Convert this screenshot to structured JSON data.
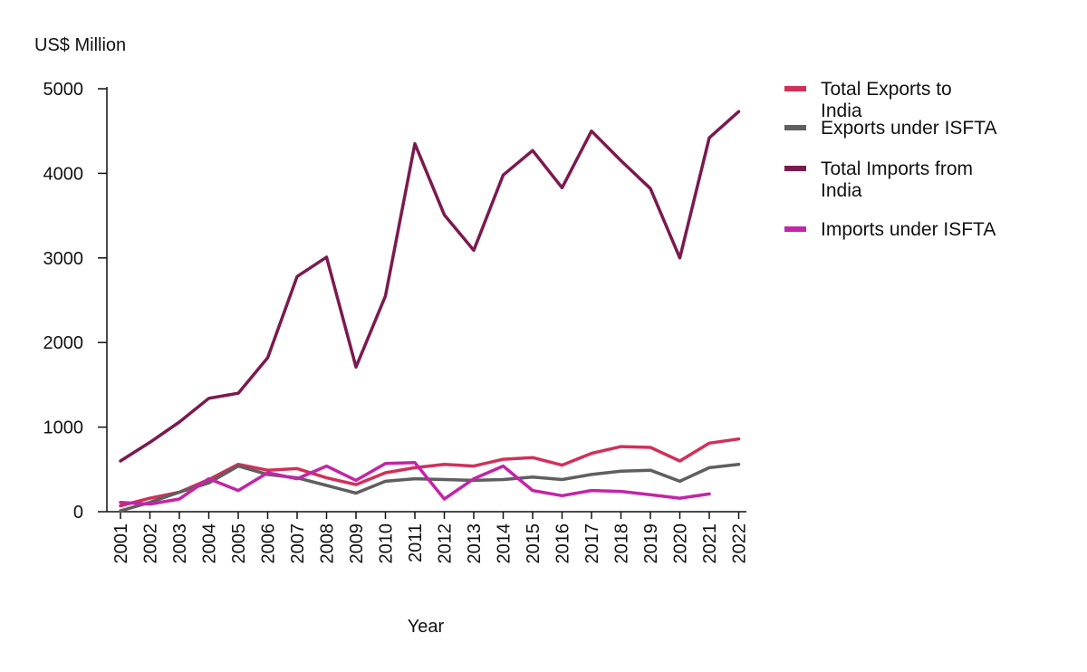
{
  "chart_data": {
    "type": "line",
    "ylabel": "US$ Million",
    "xlabel": "Year",
    "ylim": [
      0,
      5000
    ],
    "yticks": [
      0,
      1000,
      2000,
      3000,
      4000,
      5000
    ],
    "x": [
      2001,
      2002,
      2003,
      2004,
      2005,
      2006,
      2007,
      2008,
      2009,
      2010,
      2011,
      2012,
      2013,
      2014,
      2015,
      2016,
      2017,
      2018,
      2019,
      2020,
      2021,
      2022
    ],
    "grid": false,
    "legend": "right",
    "series": [
      {
        "name": "Total Exports to India",
        "color": "#d0305a",
        "values": [
          70,
          160,
          230,
          380,
          560,
          490,
          510,
          400,
          320,
          460,
          520,
          560,
          540,
          620,
          640,
          550,
          690,
          770,
          760,
          600,
          810,
          860
        ]
      },
      {
        "name": "Exports under ISFTA",
        "color": "#5f5f5f",
        "values": [
          10,
          110,
          230,
          340,
          540,
          440,
          400,
          310,
          220,
          360,
          390,
          380,
          370,
          380,
          410,
          380,
          440,
          480,
          490,
          360,
          520,
          560
        ]
      },
      {
        "name": "Total Imports from India",
        "color": "#7b1a4f",
        "values": [
          600,
          820,
          1060,
          1340,
          1400,
          1820,
          2780,
          3010,
          1710,
          2550,
          4350,
          3510,
          3090,
          3980,
          4270,
          3830,
          4500,
          4150,
          3820,
          3000,
          4420,
          4730
        ]
      },
      {
        "name": "Imports under ISFTA",
        "color": "#c225a6",
        "values": [
          110,
          90,
          150,
          390,
          250,
          460,
          390,
          540,
          370,
          570,
          580,
          150,
          390,
          540,
          250,
          190,
          250,
          240,
          200,
          160,
          210,
          null
        ]
      }
    ]
  }
}
